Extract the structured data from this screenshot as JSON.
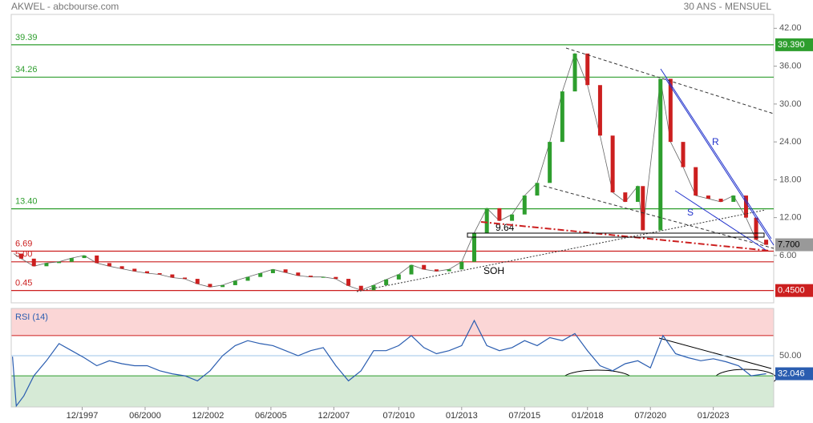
{
  "header": {
    "title": "AKWEL - abcbourse.com",
    "period": "30 ANS - MENSUEL"
  },
  "chart_data": [
    {
      "type": "candlestick",
      "x": [
        1995.2,
        1995.5,
        1996,
        1996.5,
        1997,
        1997.5,
        1998,
        1998.5,
        1999,
        1999.5,
        2000,
        2000.5,
        2001,
        2001.5,
        2002,
        2002.5,
        2003,
        2003.5,
        2004,
        2004.5,
        2005,
        2005.5,
        2006,
        2006.5,
        2007,
        2007.5,
        2008,
        2008.5,
        2009,
        2009.5,
        2010,
        2010.5,
        2011,
        2011.5,
        2012,
        2012.5,
        2013,
        2013.5,
        2014,
        2014.5,
        2015,
        2015.5,
        2016,
        2016.5,
        2017,
        2017.5,
        2018,
        2018.5,
        2019,
        2019.5,
        2020,
        2020.2,
        2020.9,
        2021.3,
        2021.8,
        2022.3,
        2022.8,
        2023.3,
        2023.8,
        2024.3,
        2024.7,
        2025.1
      ],
      "values": [
        6.3,
        5.5,
        4.3,
        4.8,
        5.0,
        5.6,
        6.0,
        4.8,
        4.3,
        3.9,
        3.5,
        3.2,
        3.0,
        2.5,
        2.3,
        1.5,
        1.0,
        1.3,
        2.0,
        2.6,
        3.2,
        3.8,
        3.3,
        2.8,
        2.6,
        2.6,
        2.3,
        1.2,
        0.5,
        1.3,
        2.2,
        3.0,
        4.5,
        3.8,
        3.5,
        3.8,
        5.0,
        9.6,
        13.5,
        11.5,
        12.5,
        15.5,
        17.5,
        24,
        32,
        38,
        33,
        25,
        16,
        14.5,
        17,
        10,
        34,
        24,
        20,
        15.5,
        15,
        14.5,
        15.5,
        12,
        8.5,
        7.7
      ],
      "up_color": "#2e9e2e",
      "down_color": "#cc1f1f",
      "xlim": [
        1995.1,
        2025.4
      ],
      "ylim": [
        -1.5,
        44.2
      ],
      "xticks": [
        {
          "value": 1997.92,
          "label": "12/1997"
        },
        {
          "value": 2000.42,
          "label": "06/2000"
        },
        {
          "value": 2002.92,
          "label": "12/2002"
        },
        {
          "value": 2005.42,
          "label": "06/2005"
        },
        {
          "value": 2007.92,
          "label": "12/2007"
        },
        {
          "value": 2010.5,
          "label": "07/2010"
        },
        {
          "value": 2013.0,
          "label": "01/2013"
        },
        {
          "value": 2015.5,
          "label": "07/2015"
        },
        {
          "value": 2018.0,
          "label": "01/2018"
        },
        {
          "value": 2020.5,
          "label": "07/2020"
        },
        {
          "value": 2023.0,
          "label": "01/2023"
        }
      ],
      "yticks": [
        {
          "value": 6,
          "label": "6.00"
        },
        {
          "value": 12,
          "label": "12.00"
        },
        {
          "value": 18,
          "label": "18.00"
        },
        {
          "value": 24,
          "label": "24.00"
        },
        {
          "value": 30,
          "label": "30.00"
        },
        {
          "value": 36,
          "label": "36.00"
        },
        {
          "value": 42,
          "label": "42.00"
        }
      ],
      "levels": [
        {
          "value": 39.39,
          "label": "39.39",
          "color": "#2e9e2e"
        },
        {
          "value": 34.26,
          "label": "34.26",
          "color": "#2e9e2e"
        },
        {
          "value": 13.4,
          "label": "13.40",
          "color": "#2e9e2e"
        },
        {
          "value": 6.69,
          "label": "6.69",
          "color": "#cc1f1f"
        },
        {
          "value": 5.0,
          "label": "5.00",
          "color": "#cc1f1f"
        },
        {
          "value": 0.45,
          "label": "0.45",
          "color": "#cc1f1f"
        }
      ],
      "price_tags": [
        {
          "value": 39.39,
          "label": "39.390",
          "color": "#2e9e2e",
          "text_color": "#ffffff"
        },
        {
          "value": 7.7,
          "label": "7.700",
          "color": "#999999",
          "text_color": "#000000"
        },
        {
          "value": 0.45,
          "label": "0.4500",
          "color": "#cc1f1f",
          "text_color": "#ffffff"
        }
      ],
      "annotations": [
        {
          "text": "9.64"
        },
        {
          "text": "SOH"
        },
        {
          "text": "R"
        },
        {
          "text": "S"
        }
      ]
    },
    {
      "type": "line",
      "title": "RSI (14)",
      "color": "#2a5db0",
      "x": [
        1995.15,
        1995.3,
        1995.6,
        1996,
        1996.5,
        1997,
        1997.5,
        1998,
        1998.5,
        1999,
        1999.5,
        2000,
        2000.5,
        2001,
        2001.5,
        2002,
        2002.5,
        2003,
        2003.5,
        2004,
        2004.5,
        2005,
        2005.5,
        2006,
        2006.5,
        2007,
        2007.5,
        2008,
        2008.5,
        2009,
        2009.5,
        2010,
        2010.5,
        2011,
        2011.5,
        2012,
        2012.5,
        2013,
        2013.5,
        2014,
        2014.5,
        2015,
        2015.5,
        2016,
        2016.5,
        2017,
        2017.5,
        2018,
        2018.5,
        2019,
        2019.5,
        2020,
        2020.5,
        2021,
        2021.5,
        2022,
        2022.5,
        2023,
        2023.5,
        2024,
        2024.5,
        2025.1
      ],
      "values": [
        49,
        0,
        10,
        30,
        45,
        62,
        55,
        48,
        40,
        45,
        42,
        40,
        40,
        35,
        32,
        30,
        25,
        35,
        50,
        60,
        65,
        62,
        60,
        55,
        50,
        55,
        58,
        40,
        25,
        35,
        55,
        55,
        60,
        70,
        58,
        52,
        55,
        60,
        85,
        60,
        55,
        58,
        65,
        60,
        68,
        65,
        72,
        55,
        40,
        35,
        42,
        45,
        38,
        70,
        52,
        48,
        45,
        47,
        44,
        40,
        30,
        32.046
      ],
      "xlim": [
        1995.1,
        2025.4
      ],
      "ylim": [
        -1,
        97
      ],
      "yticks": [
        {
          "value": 50,
          "label": "50.00"
        }
      ],
      "zones": {
        "upper": 70,
        "lower": 30
      },
      "price_tag": {
        "value": 32.046,
        "label": "32.046",
        "color": "#2a5db0"
      }
    }
  ]
}
